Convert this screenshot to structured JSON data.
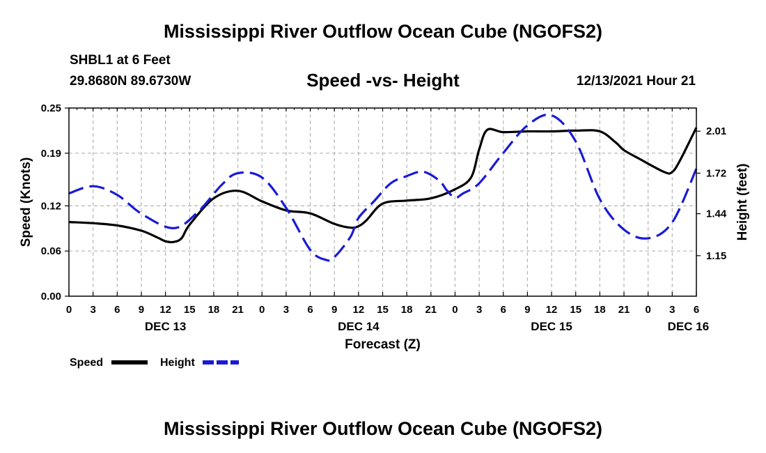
{
  "header": {
    "main_title": "Mississippi River Outflow Ocean Cube (NGOFS2)",
    "station": "SHBL1 at 6 Feet",
    "coords": "29.8680N  89.6730W",
    "subtitle": "Speed -vs- Height",
    "datetime": "12/13/2021 Hour 21",
    "bottom_title": "Mississippi River Outflow Ocean Cube (NGOFS2)"
  },
  "chart_data": {
    "type": "line",
    "title": "Speed -vs- Height",
    "xlabel": "Forecast (Z)",
    "ylabel": "Speed (Knots)",
    "y2label": "Height (feet)",
    "x_hours_range": [
      0,
      78
    ],
    "x_tick_labels": [
      "0",
      "3",
      "6",
      "9",
      "12",
      "15",
      "18",
      "21",
      "0",
      "3",
      "6",
      "9",
      "12",
      "15",
      "18",
      "21",
      "0",
      "3",
      "6",
      "9",
      "12",
      "15",
      "18",
      "21",
      "0",
      "3",
      "6"
    ],
    "date_labels": [
      {
        "label": "DEC 13",
        "hour": 12
      },
      {
        "label": "DEC 14",
        "hour": 36
      },
      {
        "label": "DEC 15",
        "hour": 60
      },
      {
        "label": "DEC 16",
        "hour": 77
      }
    ],
    "ylim": [
      0,
      0.25
    ],
    "y_ticks": [
      0.0,
      0.06,
      0.12,
      0.19,
      0.25
    ],
    "y_tick_labels": [
      "0.00",
      "0.06",
      "0.12",
      "0.19",
      "0.25"
    ],
    "y2lim": [
      0.87,
      2.17
    ],
    "y2_ticks": [
      1.15,
      1.44,
      1.72,
      2.01
    ],
    "y2_tick_labels": [
      "1.15",
      "1.44",
      "1.72",
      "2.01"
    ],
    "grid": true,
    "series": [
      {
        "name": "Speed",
        "color": "#000000",
        "style": "solid",
        "axis": "left",
        "x": [
          0,
          3,
          6,
          9,
          11,
          12,
          13,
          14,
          15,
          18,
          21,
          24,
          27,
          30,
          33,
          35,
          36,
          37,
          39,
          42,
          45,
          48,
          50,
          51,
          52,
          54,
          57,
          60,
          63,
          66,
          68,
          69,
          71,
          74,
          75,
          76,
          78
        ],
        "values": [
          0.0985,
          0.097,
          0.094,
          0.087,
          0.078,
          0.073,
          0.072,
          0.077,
          0.095,
          0.13,
          0.14,
          0.126,
          0.114,
          0.11,
          0.096,
          0.091,
          0.093,
          0.101,
          0.123,
          0.127,
          0.13,
          0.142,
          0.158,
          0.195,
          0.221,
          0.218,
          0.219,
          0.219,
          0.22,
          0.219,
          0.204,
          0.194,
          0.182,
          0.165,
          0.165,
          0.181,
          0.224
        ]
      },
      {
        "name": "Height",
        "color": "#1a1ad6",
        "style": "dashed",
        "axis": "right",
        "x": [
          0,
          3,
          6,
          9,
          13,
          16,
          19,
          21,
          24,
          27,
          30,
          32,
          33,
          35,
          36,
          38,
          40,
          42,
          44,
          46,
          47,
          48,
          49,
          51,
          54,
          57,
          60,
          63,
          66,
          69,
          72,
          75,
          78
        ],
        "values": [
          1.58,
          1.63,
          1.57,
          1.44,
          1.34,
          1.45,
          1.64,
          1.72,
          1.69,
          1.48,
          1.19,
          1.12,
          1.14,
          1.28,
          1.41,
          1.53,
          1.65,
          1.7,
          1.73,
          1.67,
          1.6,
          1.55,
          1.58,
          1.65,
          1.86,
          2.05,
          2.12,
          1.94,
          1.54,
          1.33,
          1.27,
          1.38,
          1.75
        ]
      }
    ],
    "legend": [
      {
        "label": "Speed",
        "color": "#000000",
        "style": "solid"
      },
      {
        "label": "Height",
        "color": "#1a1ad6",
        "style": "dashed"
      }
    ]
  }
}
